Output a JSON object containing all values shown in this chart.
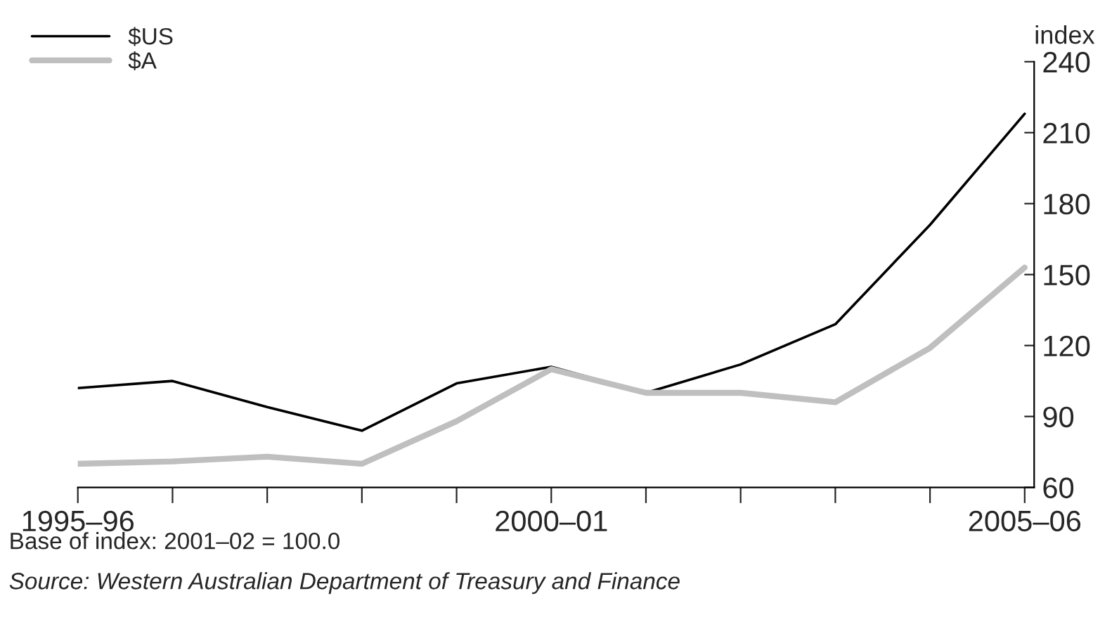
{
  "chart_data": {
    "type": "line",
    "categories": [
      "1995–96",
      null,
      null,
      null,
      null,
      "2000–01",
      null,
      null,
      null,
      null,
      "2005–06"
    ],
    "series": [
      {
        "name": "$US",
        "color": "#000000",
        "values": [
          102,
          105,
          94,
          84,
          104,
          111,
          100,
          112,
          129,
          171,
          218
        ]
      },
      {
        "name": "$A",
        "color": "#bfbfbf",
        "values": [
          70,
          71,
          73,
          70,
          88,
          110,
          100,
          100,
          96,
          119,
          153
        ]
      }
    ],
    "ylabel": "index",
    "ylim": [
      60,
      240
    ],
    "yticks": [
      60,
      90,
      120,
      150,
      180,
      210,
      240
    ],
    "grid": false,
    "legend": "top left",
    "marker": "none",
    "line_style": "solid",
    "annotations": [
      "Base of index: 2001–02 = 100.0",
      "Source: Western Australian Department of Treasury and Finance"
    ]
  }
}
